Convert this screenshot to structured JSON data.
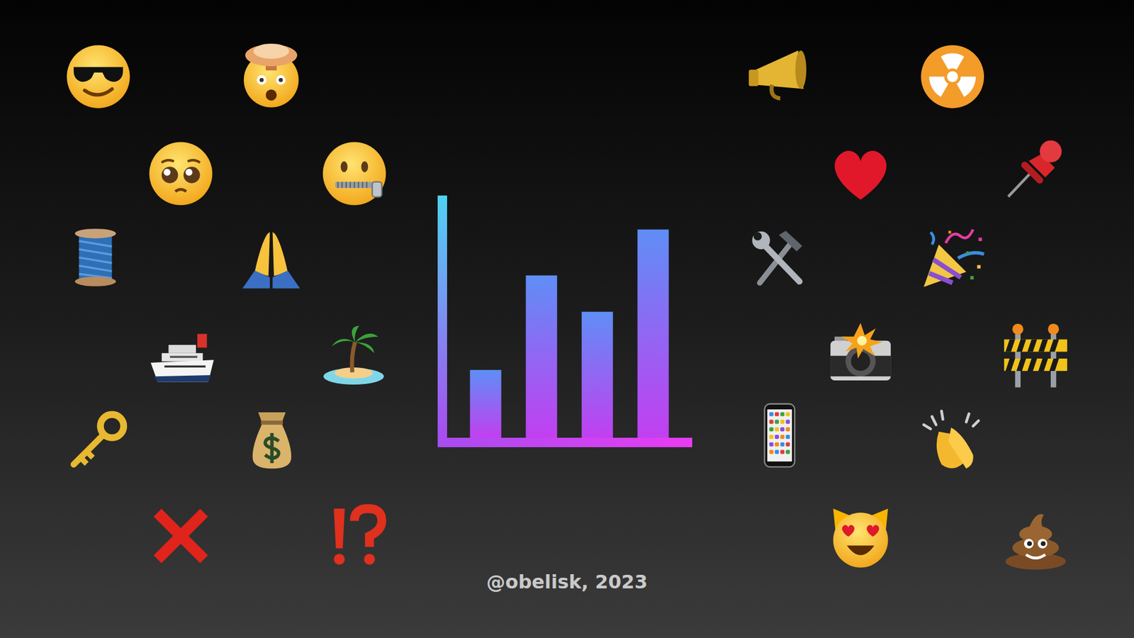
{
  "chart_data": {
    "type": "bar",
    "categories": [
      null,
      null,
      null,
      null
    ],
    "values": [
      28,
      67,
      52,
      86
    ],
    "ylim": [
      0,
      100
    ],
    "grid": false,
    "tick_labels": false,
    "annotations": [
      "@obelisk, 2023"
    ]
  }
}
